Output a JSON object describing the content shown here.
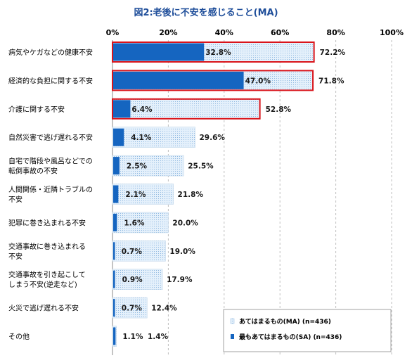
{
  "chart_data": {
    "type": "bar",
    "title": "図2:老後に不安を感じること(MA)",
    "xlim": [
      0,
      100
    ],
    "xticks": [
      "0%",
      "20%",
      "40%",
      "60%",
      "80%",
      "100%"
    ],
    "grid": true,
    "legend_position": "bottom-right",
    "categories": [
      [
        "病気やケガなどの健康不安"
      ],
      [
        "経済的な負担に関する不安"
      ],
      [
        "介護に関する不安"
      ],
      [
        "自然災害で逃げ遅れる不安"
      ],
      [
        "自宅で階段や風呂などでの",
        "転倒事故の不安"
      ],
      [
        "人間関係・近隣トラブルの",
        "不安"
      ],
      [
        "犯罪に巻き込まれる不安"
      ],
      [
        "交通事故に巻き込まれる",
        "不安"
      ],
      [
        "交通事故を引き起こして",
        "しまう不安(逆走など)"
      ],
      [
        "火災で逃げ遅れる不安"
      ],
      [
        "その他"
      ]
    ],
    "series": [
      {
        "name": "あてはまるもの(MA) (n=436)",
        "values": [
          72.2,
          71.8,
          52.8,
          29.6,
          25.5,
          21.8,
          20.0,
          19.0,
          17.9,
          12.4,
          1.4
        ],
        "labels": [
          "72.2%",
          "71.8%",
          "52.8%",
          "29.6%",
          "25.5%",
          "21.8%",
          "20.0%",
          "19.0%",
          "17.9%",
          "12.4%",
          "1.4%"
        ],
        "color": "#d6e8f8"
      },
      {
        "name": "最もあてはまるもの(SA) (n=436)",
        "values": [
          32.8,
          47.0,
          6.4,
          4.1,
          2.5,
          2.1,
          1.6,
          0.7,
          0.9,
          0.7,
          1.1
        ],
        "labels": [
          "32.8%",
          "47.0%",
          "6.4%",
          "4.1%",
          "2.5%",
          "2.1%",
          "1.6%",
          "0.7%",
          "0.9%",
          "0.7%",
          "1.1%"
        ],
        "color": "#1565c0"
      }
    ],
    "highlighted_categories": [
      0,
      1,
      2
    ],
    "highlight_color": "#d9141b"
  }
}
